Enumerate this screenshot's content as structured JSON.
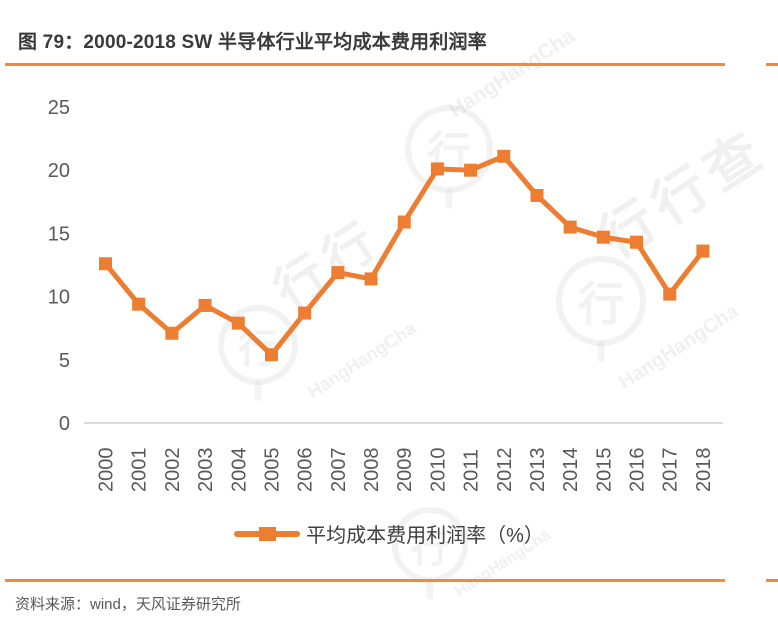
{
  "figure": {
    "title": "图 79：2000-2018 SW 半导体行业平均成本费用利润率",
    "source": "资料来源：wind，天风证券研究所"
  },
  "legend": {
    "label": "平均成本费用利润率（%）"
  },
  "watermark": {
    "brand_cn": "行行查",
    "brand_cn_short": "行行",
    "brand_en": "HangHangCha",
    "stamp_glyph": "行"
  },
  "colors": {
    "series": "#ED7D31",
    "divider": "#EF8B3F",
    "axis_line": "#D9D9D9",
    "tick_label": "#595959",
    "title_text": "#3A3A3A",
    "legend_text": "#404040",
    "source_text": "#595959"
  },
  "chart_data": {
    "type": "line",
    "title": "图 79：2000-2018 SW 半导体行业平均成本费用利润率",
    "categories": [
      "2000",
      "2001",
      "2002",
      "2003",
      "2004",
      "2005",
      "2006",
      "2007",
      "2008",
      "2009",
      "2010",
      "2011",
      "2012",
      "2013",
      "2014",
      "2015",
      "2016",
      "2017",
      "2018"
    ],
    "series": [
      {
        "name": "平均成本费用利润率（%）",
        "values": [
          12.6,
          9.4,
          7.1,
          9.3,
          7.9,
          5.4,
          8.7,
          11.9,
          11.4,
          15.9,
          20.1,
          20.0,
          21.1,
          18.0,
          15.5,
          14.7,
          14.3,
          10.2,
          13.6
        ]
      }
    ],
    "xlabel": "",
    "ylabel": "",
    "ylim": [
      0,
      25
    ],
    "yticks": [
      0,
      5,
      10,
      15,
      20,
      25
    ],
    "grid": false,
    "legend_position": "bottom",
    "marker": "square",
    "x_tick_rotation": 90
  }
}
